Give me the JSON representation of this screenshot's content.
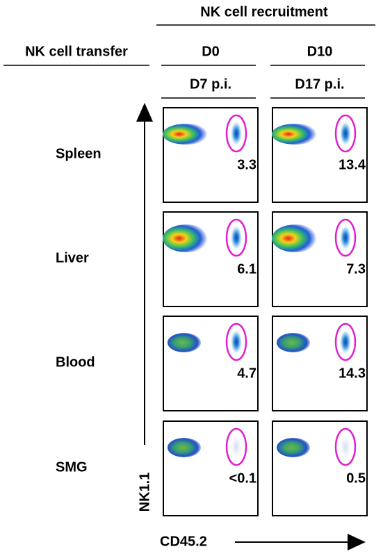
{
  "header": {
    "recruitment": "NK cell recruitment",
    "transfer": "NK cell transfer"
  },
  "columns": [
    {
      "treatment": "D0",
      "time": "D7 p.i."
    },
    {
      "treatment": "D10",
      "time": "D17 p.i."
    }
  ],
  "rows": [
    {
      "label": "Spleen",
      "values": [
        "3.3",
        "13.4"
      ]
    },
    {
      "label": "Liver",
      "values": [
        "6.1",
        "7.3"
      ]
    },
    {
      "label": "Blood",
      "values": [
        "4.7",
        "14.3"
      ]
    },
    {
      "label": "SMG",
      "values": [
        "<0.1",
        "0.5"
      ]
    }
  ],
  "axes": {
    "y": "NK1.1",
    "x": "CD45.2"
  }
}
